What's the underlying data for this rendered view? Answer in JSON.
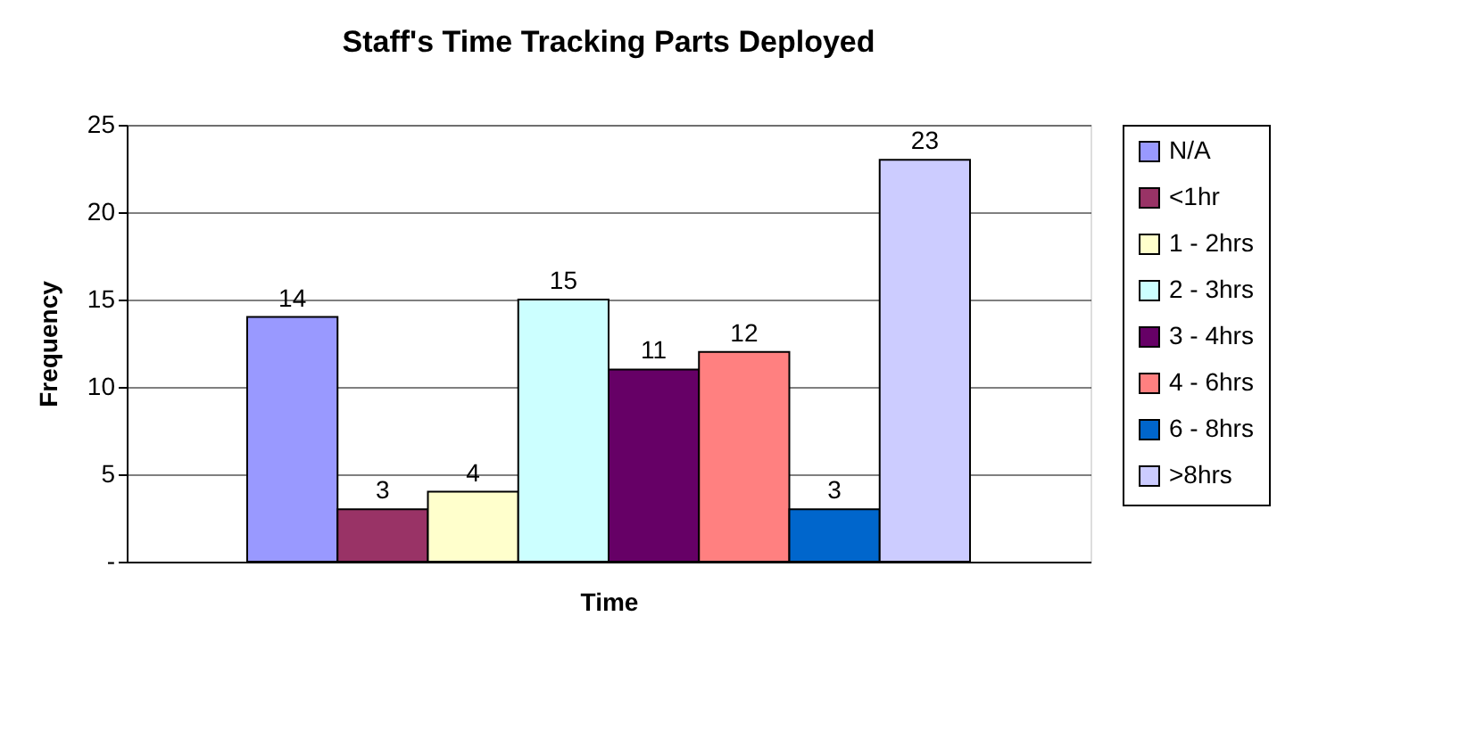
{
  "chart_data": {
    "type": "bar",
    "title": "Staff's Time Tracking Parts Deployed",
    "xlabel": "Time",
    "ylabel": "Frequency",
    "categories": [
      null
    ],
    "series": [
      {
        "name": "N/A",
        "color": "#9999ff",
        "values": [
          14
        ]
      },
      {
        "name": "<1hr",
        "color": "#993366",
        "values": [
          3
        ]
      },
      {
        "name": "1 - 2hrs",
        "color": "#ffffcc",
        "values": [
          4
        ]
      },
      {
        "name": "2 - 3hrs",
        "color": "#ccffff",
        "values": [
          15
        ]
      },
      {
        "name": "3 - 4hrs",
        "color": "#660066",
        "values": [
          11
        ]
      },
      {
        "name": "4 - 6hrs",
        "color": "#ff8080",
        "values": [
          12
        ]
      },
      {
        "name": "6 - 8hrs",
        "color": "#0066cc",
        "values": [
          3
        ]
      },
      {
        "name": ">8hrs",
        "color": "#ccccff",
        "values": [
          23
        ]
      }
    ],
    "ylim": [
      0,
      25
    ],
    "yticks": [
      {
        "value": 0,
        "label": "-"
      },
      5,
      10,
      15,
      20,
      25
    ],
    "grid": "y",
    "legend": "right",
    "data_labels": true
  }
}
